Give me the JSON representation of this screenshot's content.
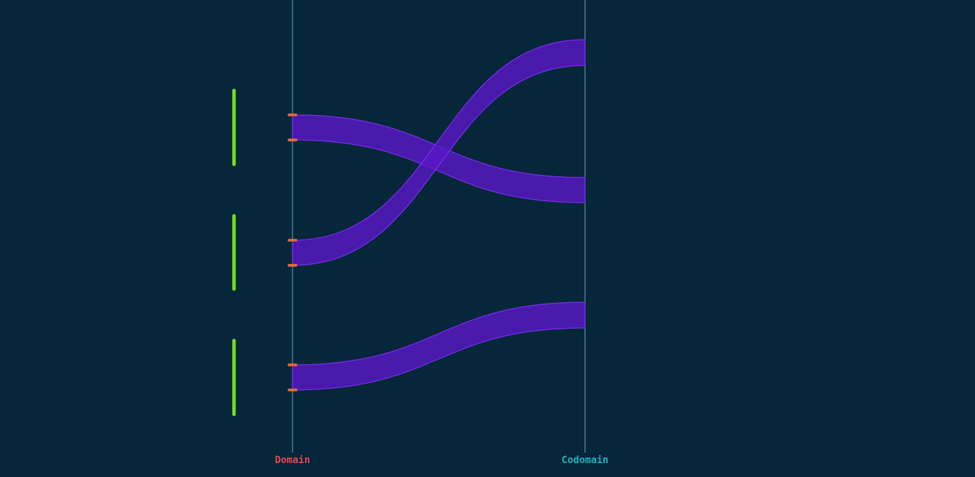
{
  "labels": {
    "domain": "Domain",
    "codomain": "Codomain"
  },
  "colors": {
    "background": "#06263a",
    "axis_line": "#5d8fa8",
    "domain_label": "#e8464e",
    "codomain_label": "#1fb3c4",
    "group_bar": "#7ddc1f",
    "interval_tick": "#e0663a",
    "band_fill": "#5a17c8",
    "band_stroke": "#7b2ff2"
  },
  "icons": {
    "interval_tick": "tick-mark-icon"
  }
}
